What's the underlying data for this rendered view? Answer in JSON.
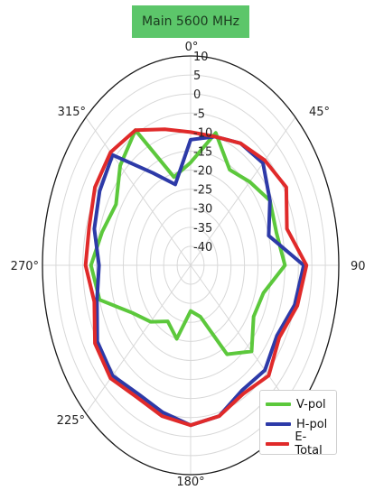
{
  "chart_data": {
    "type": "polar-line",
    "title": "Main 5600 MHz",
    "angle_ticks": [
      "0°",
      "45°",
      "90°",
      "",
      "180°",
      "225°",
      "270°",
      "315°"
    ],
    "radial_ticks": [
      10,
      5,
      0,
      -5,
      -10,
      -15,
      -20,
      -25,
      -30,
      -35,
      -40
    ],
    "rlim": [
      -45,
      10
    ],
    "angle_direction": "clockwise",
    "angle_zero": "top",
    "grid": true,
    "legend_placement": "bottom-right",
    "theta_deg": [
      0,
      15,
      30,
      45,
      60,
      75,
      90,
      105,
      120,
      135,
      150,
      165,
      180,
      195,
      210,
      225,
      240,
      255,
      270,
      285,
      300,
      315,
      330,
      345
    ],
    "series": [
      {
        "name": "V-pol",
        "color": "#5cc83c",
        "values": [
          -18,
          -9,
          -16,
          -14,
          -11,
          -12,
          -10,
          -17,
          -18,
          -13,
          -18,
          -31,
          -33,
          -25,
          -28,
          -24,
          -20,
          -10,
          -8,
          -11,
          -13,
          -8,
          -4,
          -21
        ]
      },
      {
        "name": "H-pol",
        "color": "#2d3aa8",
        "values": [
          -12,
          -10,
          -8,
          -7,
          -11,
          -15,
          -3,
          -5,
          -8,
          -6,
          -7,
          -4,
          -3,
          -5,
          -6,
          -4,
          -5,
          -9,
          -11,
          -8,
          -6,
          -4,
          -17,
          -23
        ]
      },
      {
        "name": "E-Total",
        "color": "#e02a2a",
        "values": [
          -10,
          -10,
          -8,
          -6,
          -4,
          -8,
          -2,
          -4,
          -7,
          -4,
          -6,
          -4,
          -3,
          -4,
          -5,
          -3,
          -4,
          -8,
          -6,
          -6,
          -4,
          -3,
          -4,
          -8
        ]
      }
    ]
  }
}
